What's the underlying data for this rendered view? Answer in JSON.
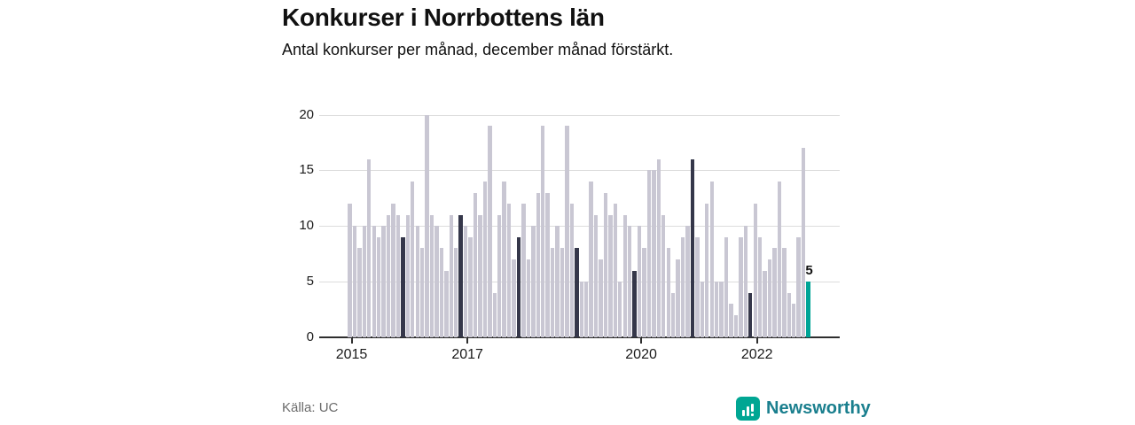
{
  "header": {
    "title": "Konkurser i Norrbottens län",
    "subtitle": "Antal konkurser per månad, december månad förstärkt."
  },
  "footer": {
    "source": "Källa: UC",
    "brand_name": "Newsworthy"
  },
  "colors": {
    "bar": "#c9c7d3",
    "december_bar": "#35374a",
    "latest_bar": "#00a496",
    "gridline": "#dcdcdc",
    "axis": "#2e2e2e",
    "brand_icon": "#00a693",
    "brand_text": "#1a7f8e"
  },
  "chart_data": {
    "type": "bar",
    "title": "Konkurser i Norrbottens län",
    "subtitle": "Antal konkurser per månad, december månad förstärkt.",
    "xlabel": "",
    "ylabel": "Antal konkurser per månad",
    "x_start": "2015-01",
    "x_end": "2022-12",
    "ylim": [
      0,
      20
    ],
    "y_ticks": [
      0,
      5,
      10,
      15,
      20
    ],
    "x_tick_labels": [
      "2015",
      "2017",
      "2020",
      "2022"
    ],
    "grid": "horizontal",
    "highlight_rule": "december months dark, latest month teal",
    "series": [
      {
        "year": "2015",
        "values": [
          12,
          10,
          8,
          10,
          16,
          10,
          9,
          10,
          11,
          12,
          11,
          9
        ]
      },
      {
        "year": "2016",
        "values": [
          11,
          14,
          10,
          8,
          20,
          11,
          10,
          8,
          6,
          11,
          8,
          11
        ]
      },
      {
        "year": "2017",
        "values": [
          10,
          9,
          13,
          11,
          14,
          19,
          4,
          11,
          14,
          12,
          7,
          9
        ]
      },
      {
        "year": "2018",
        "values": [
          12,
          7,
          10,
          13,
          19,
          13,
          8,
          10,
          8,
          19,
          12,
          8
        ]
      },
      {
        "year": "2019",
        "values": [
          5,
          5,
          14,
          11,
          7,
          13,
          11,
          12,
          5,
          11,
          10,
          6
        ]
      },
      {
        "year": "2020",
        "values": [
          10,
          8,
          15,
          15,
          16,
          11,
          8,
          4,
          7,
          9,
          10,
          16
        ]
      },
      {
        "year": "2021",
        "values": [
          9,
          5,
          12,
          14,
          5,
          5,
          9,
          3,
          2,
          9,
          10,
          4
        ]
      },
      {
        "year": "2022",
        "values": [
          12,
          9,
          6,
          7,
          8,
          14,
          8,
          4,
          3,
          9,
          17,
          5
        ]
      }
    ],
    "latest": {
      "month": "2022-12",
      "value": 5,
      "label": "5"
    }
  }
}
